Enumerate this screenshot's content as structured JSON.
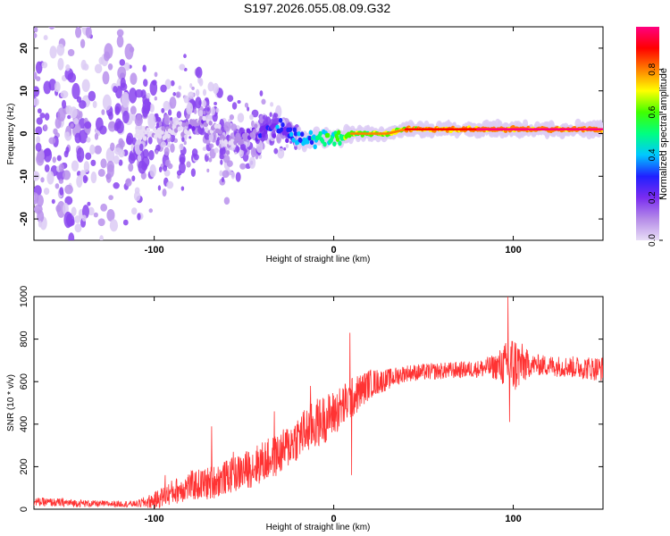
{
  "page_title": "S197.2026.055.08.09.G32",
  "colorbar": {
    "label": "Normalized spectral amplitude",
    "ticks": [
      "0.0",
      "0.2",
      "0.4",
      "0.6",
      "0.8"
    ],
    "tick_values": [
      0.0,
      0.2,
      0.4,
      0.6,
      0.8
    ],
    "range": [
      0.0,
      1.0
    ],
    "colors": [
      "#e8ddf6",
      "#b58be8",
      "#7a2cf0",
      "#2020ff",
      "#00c8ff",
      "#00ff80",
      "#40ff00",
      "#ffff00",
      "#ff8000",
      "#ff0000",
      "#ff0080"
    ]
  },
  "chart_data": [
    {
      "type": "heatmap",
      "title": "S197.2026.055.08.09.G32",
      "xlabel": "Height of straight line (km)",
      "ylabel": "Frequency (Hz)",
      "xlim": [
        -167,
        150
      ],
      "ylim": [
        -25,
        25
      ],
      "xticks": [
        -100,
        0,
        100
      ],
      "xtick_labels": [
        "-100",
        "0",
        "100"
      ],
      "yticks": [
        -20,
        -10,
        0,
        10,
        20
      ],
      "ytick_labels": [
        "-20",
        "-10",
        "0",
        "10",
        "20"
      ],
      "ridge": {
        "x": [
          -167,
          -140,
          -120,
          -100,
          -85,
          -75,
          -65,
          -60,
          -55,
          -45,
          -38,
          -30,
          -25,
          -20,
          -15,
          -10,
          -5,
          0,
          5,
          10,
          20,
          30,
          40,
          50,
          60,
          80,
          100,
          120,
          150
        ],
        "frequency": [
          0,
          0,
          0,
          0,
          1,
          3,
          1,
          -3,
          -2,
          0,
          1,
          1,
          0,
          -1,
          -2,
          -1,
          -1,
          -1,
          -1,
          0,
          0,
          0,
          1,
          1,
          1,
          1,
          1,
          1,
          1
        ],
        "amplitude": [
          0.1,
          0.12,
          0.14,
          0.16,
          0.2,
          0.25,
          0.22,
          0.2,
          0.2,
          0.3,
          0.35,
          0.4,
          0.45,
          0.5,
          0.55,
          0.6,
          0.62,
          0.65,
          0.7,
          0.75,
          0.78,
          0.8,
          0.85,
          0.9,
          0.92,
          0.95,
          0.95,
          0.95,
          0.95
        ]
      },
      "scatter_extent": {
        "x": [
          -167,
          -140,
          -120,
          -100,
          -80,
          -60,
          -40,
          -30,
          -20,
          0,
          40,
          100,
          150
        ],
        "halfwidth": [
          25,
          25,
          25,
          15,
          10,
          9,
          6,
          4,
          2,
          1,
          1,
          1,
          1
        ]
      }
    },
    {
      "type": "line",
      "xlabel": "Height of straight line (km)",
      "ylabel": "SNR (10 * v/v)",
      "xlim": [
        -167,
        150
      ],
      "ylim": [
        0,
        1000
      ],
      "xticks": [
        -100,
        0,
        100
      ],
      "xtick_labels": [
        "-100",
        "0",
        "100"
      ],
      "yticks": [
        0,
        200,
        400,
        600,
        800,
        1000
      ],
      "ytick_labels": [
        "0",
        "200",
        "400",
        "600",
        "800",
        "1000"
      ],
      "series": [
        {
          "name": "SNR",
          "color": "#ff3333",
          "x": [
            -167,
            -150,
            -130,
            -110,
            -100,
            -90,
            -80,
            -70,
            -60,
            -50,
            -40,
            -30,
            -20,
            -10,
            0,
            10,
            20,
            30,
            40,
            60,
            80,
            90,
            100,
            110,
            130,
            150
          ],
          "median": [
            35,
            30,
            25,
            25,
            40,
            80,
            110,
            120,
            150,
            180,
            220,
            260,
            340,
            400,
            450,
            520,
            590,
            610,
            640,
            650,
            660,
            670,
            680,
            680,
            670,
            660
          ],
          "spread": [
            20,
            20,
            15,
            15,
            40,
            60,
            70,
            80,
            80,
            90,
            100,
            100,
            110,
            120,
            110,
            100,
            70,
            50,
            40,
            40,
            40,
            60,
            150,
            50,
            50,
            60
          ]
        }
      ],
      "spikes": [
        {
          "x": -94,
          "y": 160
        },
        {
          "x": -68,
          "y": 390
        },
        {
          "x": -56,
          "y": 270
        },
        {
          "x": -33,
          "y": 460
        },
        {
          "x": -13,
          "y": 580
        },
        {
          "x": 9,
          "y": 830
        },
        {
          "x": 10,
          "y": 160
        },
        {
          "x": 97,
          "y": 1000
        },
        {
          "x": 98,
          "y": 410
        }
      ]
    }
  ]
}
